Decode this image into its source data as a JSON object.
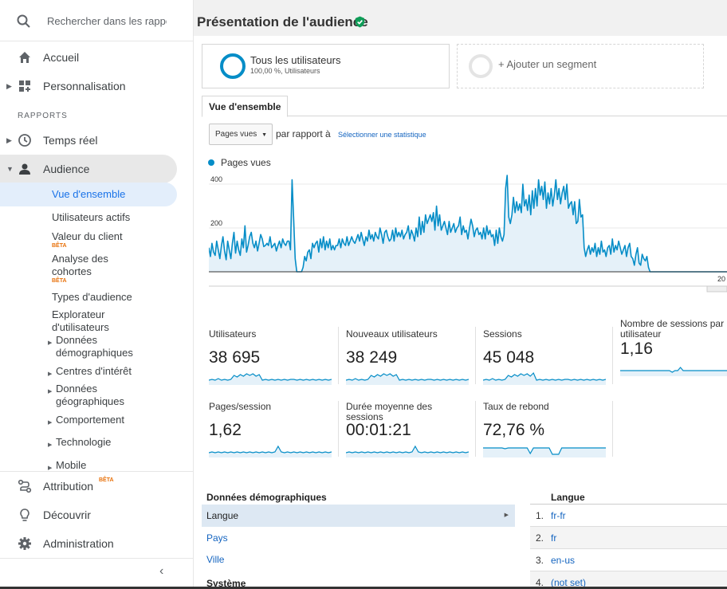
{
  "sidebar": {
    "search_placeholder": "Rechercher dans les rapport",
    "nav": [
      {
        "label": "Accueil",
        "icon": "home-icon"
      },
      {
        "label": "Personnalisation",
        "icon": "dashboard-icon"
      }
    ],
    "section_label": "RAPPORTS",
    "reports": [
      {
        "label": "Temps réel",
        "icon": "clock-icon"
      },
      {
        "label": "Audience",
        "icon": "person-icon"
      }
    ],
    "audience_items": {
      "overview": "Vue d'ensemble",
      "active_users": "Utilisateurs actifs",
      "client_value": "Valeur du client",
      "cohort": "Analyse des cohortes",
      "audience_types": "Types d'audience",
      "user_explorer": "Explorateur d'utilisateurs",
      "beta": "BÊTA"
    },
    "audience_groups": [
      "Données démographiques",
      "Centres d'intérêt",
      "Données géographiques",
      "Comportement",
      "Technologie",
      "Mobile"
    ],
    "bottom": [
      {
        "label": "Attribution",
        "icon": "attribution-icon",
        "badge": "BÊTA"
      },
      {
        "label": "Découvrir",
        "icon": "lightbulb-icon"
      },
      {
        "label": "Administration",
        "icon": "gear-icon"
      }
    ]
  },
  "header": {
    "title": "Présentation de l'audience"
  },
  "segments": [
    {
      "label": "Tous les utilisateurs",
      "sub": "100,00 %, Utilisateurs"
    },
    {
      "label": "+ Ajouter un segment"
    }
  ],
  "tabs": [
    "Vue d'ensemble"
  ],
  "controls": {
    "metric_select": "Pages vues",
    "versus": "par rapport à",
    "pick_stat": "Sélectionner une statistique"
  },
  "chart_data": {
    "type": "area",
    "series": [
      {
        "name": "Pages vues",
        "color": "#058dc7"
      }
    ],
    "y_ticks": [
      "400",
      "200"
    ],
    "x_tick_partial": "20",
    "y_max": 440,
    "values": [
      110,
      70,
      130,
      90,
      75,
      140,
      100,
      60,
      120,
      160,
      95,
      55,
      140,
      100,
      60,
      130,
      180,
      85,
      140,
      100,
      75,
      150,
      110,
      210,
      90,
      120,
      160,
      180,
      130,
      110,
      140,
      95,
      130,
      170,
      150,
      115,
      120,
      130,
      120,
      160,
      110,
      120,
      130,
      95,
      120,
      140,
      110,
      150,
      130,
      120,
      140,
      140,
      100,
      420,
      240,
      60,
      0,
      0,
      0,
      0,
      20,
      70,
      50,
      90,
      100,
      60,
      130,
      110,
      130,
      140,
      90,
      150,
      110,
      160,
      100,
      140,
      110,
      150,
      100,
      120,
      100,
      120,
      120,
      150,
      110,
      150,
      130,
      120,
      160,
      120,
      140,
      160,
      140,
      130,
      150,
      170,
      140,
      180,
      150,
      120,
      160,
      140,
      190,
      150,
      170,
      140,
      180,
      160,
      150,
      200,
      170,
      130,
      180,
      190,
      160,
      140,
      150,
      190,
      140,
      200,
      160,
      180,
      160,
      190,
      150,
      170,
      180,
      210,
      150,
      190,
      170,
      140,
      200,
      160,
      250,
      170,
      230,
      180,
      260,
      220,
      240,
      260,
      230,
      270,
      190,
      300,
      210,
      260,
      190,
      210,
      230,
      200,
      170,
      230,
      180,
      200,
      220,
      180,
      200,
      210,
      250,
      170,
      210,
      180,
      190,
      150,
      200,
      240,
      210,
      160,
      190,
      200,
      170,
      180,
      150,
      200,
      150,
      210,
      170,
      190,
      160,
      170,
      120,
      190,
      130,
      200,
      160,
      140,
      170,
      380,
      440,
      250,
      220,
      260,
      340,
      270,
      320,
      280,
      310,
      270,
      400,
      300,
      330,
      280,
      350,
      260,
      370,
      290,
      380,
      300,
      420,
      350,
      390,
      330,
      410,
      290,
      360,
      310,
      380,
      300,
      350,
      420,
      330,
      380,
      310,
      360,
      390,
      330,
      400,
      290,
      310,
      320,
      260,
      320,
      220,
      230,
      330,
      250,
      260,
      110,
      70,
      100,
      120,
      80,
      110,
      90,
      130,
      70,
      110,
      80,
      140,
      90,
      100,
      70,
      110,
      120,
      80,
      150,
      90,
      120,
      100,
      140,
      110,
      80,
      100,
      120,
      70,
      110,
      130,
      70,
      60,
      30,
      80,
      110,
      40,
      30,
      80,
      60,
      50,
      70,
      20,
      0,
      0,
      0,
      0,
      0,
      0,
      0,
      0,
      0,
      0,
      0,
      0,
      0,
      0,
      0,
      0,
      0,
      0,
      0,
      0,
      0,
      0,
      0,
      0,
      0,
      0,
      0,
      0,
      0,
      0,
      0,
      0,
      0,
      0,
      0,
      0,
      0,
      0,
      0,
      0,
      0,
      0,
      0,
      0,
      0,
      0,
      0,
      0,
      0,
      0
    ]
  },
  "metrics": [
    {
      "label": "Utilisateurs",
      "value": "38 695",
      "trend": [
        4,
        5,
        4,
        6,
        4,
        5,
        4,
        5,
        10,
        8,
        11,
        9,
        12,
        10,
        12,
        9,
        11,
        4,
        5,
        4,
        5,
        4,
        5,
        4,
        5,
        4,
        5,
        5,
        4,
        5,
        4,
        5,
        4,
        5,
        4,
        5,
        4,
        5,
        4,
        5
      ]
    },
    {
      "label": "Nouveaux utilisateurs",
      "value": "38 249",
      "trend": [
        4,
        5,
        4,
        6,
        4,
        5,
        4,
        5,
        10,
        8,
        11,
        9,
        12,
        10,
        12,
        9,
        11,
        4,
        5,
        4,
        5,
        4,
        5,
        4,
        5,
        4,
        5,
        5,
        4,
        5,
        4,
        5,
        4,
        5,
        4,
        5,
        4,
        5,
        4,
        5
      ]
    },
    {
      "label": "Sessions",
      "value": "45 048",
      "trend": [
        4,
        5,
        4,
        6,
        4,
        5,
        4,
        5,
        10,
        8,
        11,
        9,
        12,
        10,
        12,
        9,
        13,
        4,
        5,
        4,
        5,
        4,
        5,
        4,
        5,
        4,
        5,
        5,
        4,
        5,
        4,
        5,
        4,
        5,
        4,
        5,
        4,
        5,
        4,
        5
      ]
    },
    {
      "label": "Nombre de sessions par utilisateur",
      "value": "1,16",
      "trend": [
        5,
        5,
        5,
        5,
        5,
        5,
        5,
        5,
        5,
        5,
        5,
        5,
        5,
        5,
        5,
        5,
        5,
        5,
        5,
        3,
        5,
        5,
        9,
        5,
        5,
        5,
        5,
        5,
        5,
        5,
        5,
        5,
        5,
        5,
        5,
        5,
        5,
        5,
        5,
        5
      ]
    },
    {
      "label": "Pages/session",
      "value": "1,62",
      "trend": [
        4,
        5,
        4,
        5,
        4,
        5,
        4,
        5,
        4,
        5,
        4,
        5,
        4,
        5,
        4,
        5,
        4,
        5,
        4,
        5,
        4,
        5,
        12,
        5,
        4,
        5,
        4,
        5,
        4,
        5,
        4,
        5,
        4,
        5,
        4,
        5,
        4,
        5,
        4,
        5
      ]
    },
    {
      "label": "Durée moyenne des sessions",
      "value": "00:01:21",
      "trend": [
        4,
        5,
        4,
        5,
        4,
        5,
        4,
        5,
        4,
        5,
        4,
        5,
        4,
        5,
        4,
        5,
        4,
        5,
        4,
        5,
        4,
        5,
        12,
        5,
        4,
        5,
        4,
        5,
        4,
        5,
        4,
        5,
        4,
        5,
        4,
        5,
        4,
        5,
        4,
        5
      ]
    },
    {
      "label": "Taux de rebond",
      "value": "72,76 %",
      "trend": [
        10,
        10,
        10,
        10,
        10,
        10,
        10,
        9,
        10,
        10,
        10,
        10,
        10,
        10,
        10,
        3,
        10,
        10,
        10,
        10,
        10,
        10,
        2,
        2,
        2,
        10,
        10,
        10,
        10,
        10,
        10,
        10,
        10,
        10,
        10,
        10,
        10,
        10,
        10,
        10
      ]
    }
  ],
  "demographics": {
    "title": "Données démographiques",
    "rows": [
      "Langue",
      "Pays",
      "Ville"
    ],
    "system_title": "Système"
  },
  "language": {
    "title": "Langue",
    "rows": [
      {
        "n": "1.",
        "v": "fr-fr"
      },
      {
        "n": "2.",
        "v": "fr"
      },
      {
        "n": "3.",
        "v": "en-us"
      },
      {
        "n": "4.",
        "v": "(not set)"
      }
    ]
  }
}
